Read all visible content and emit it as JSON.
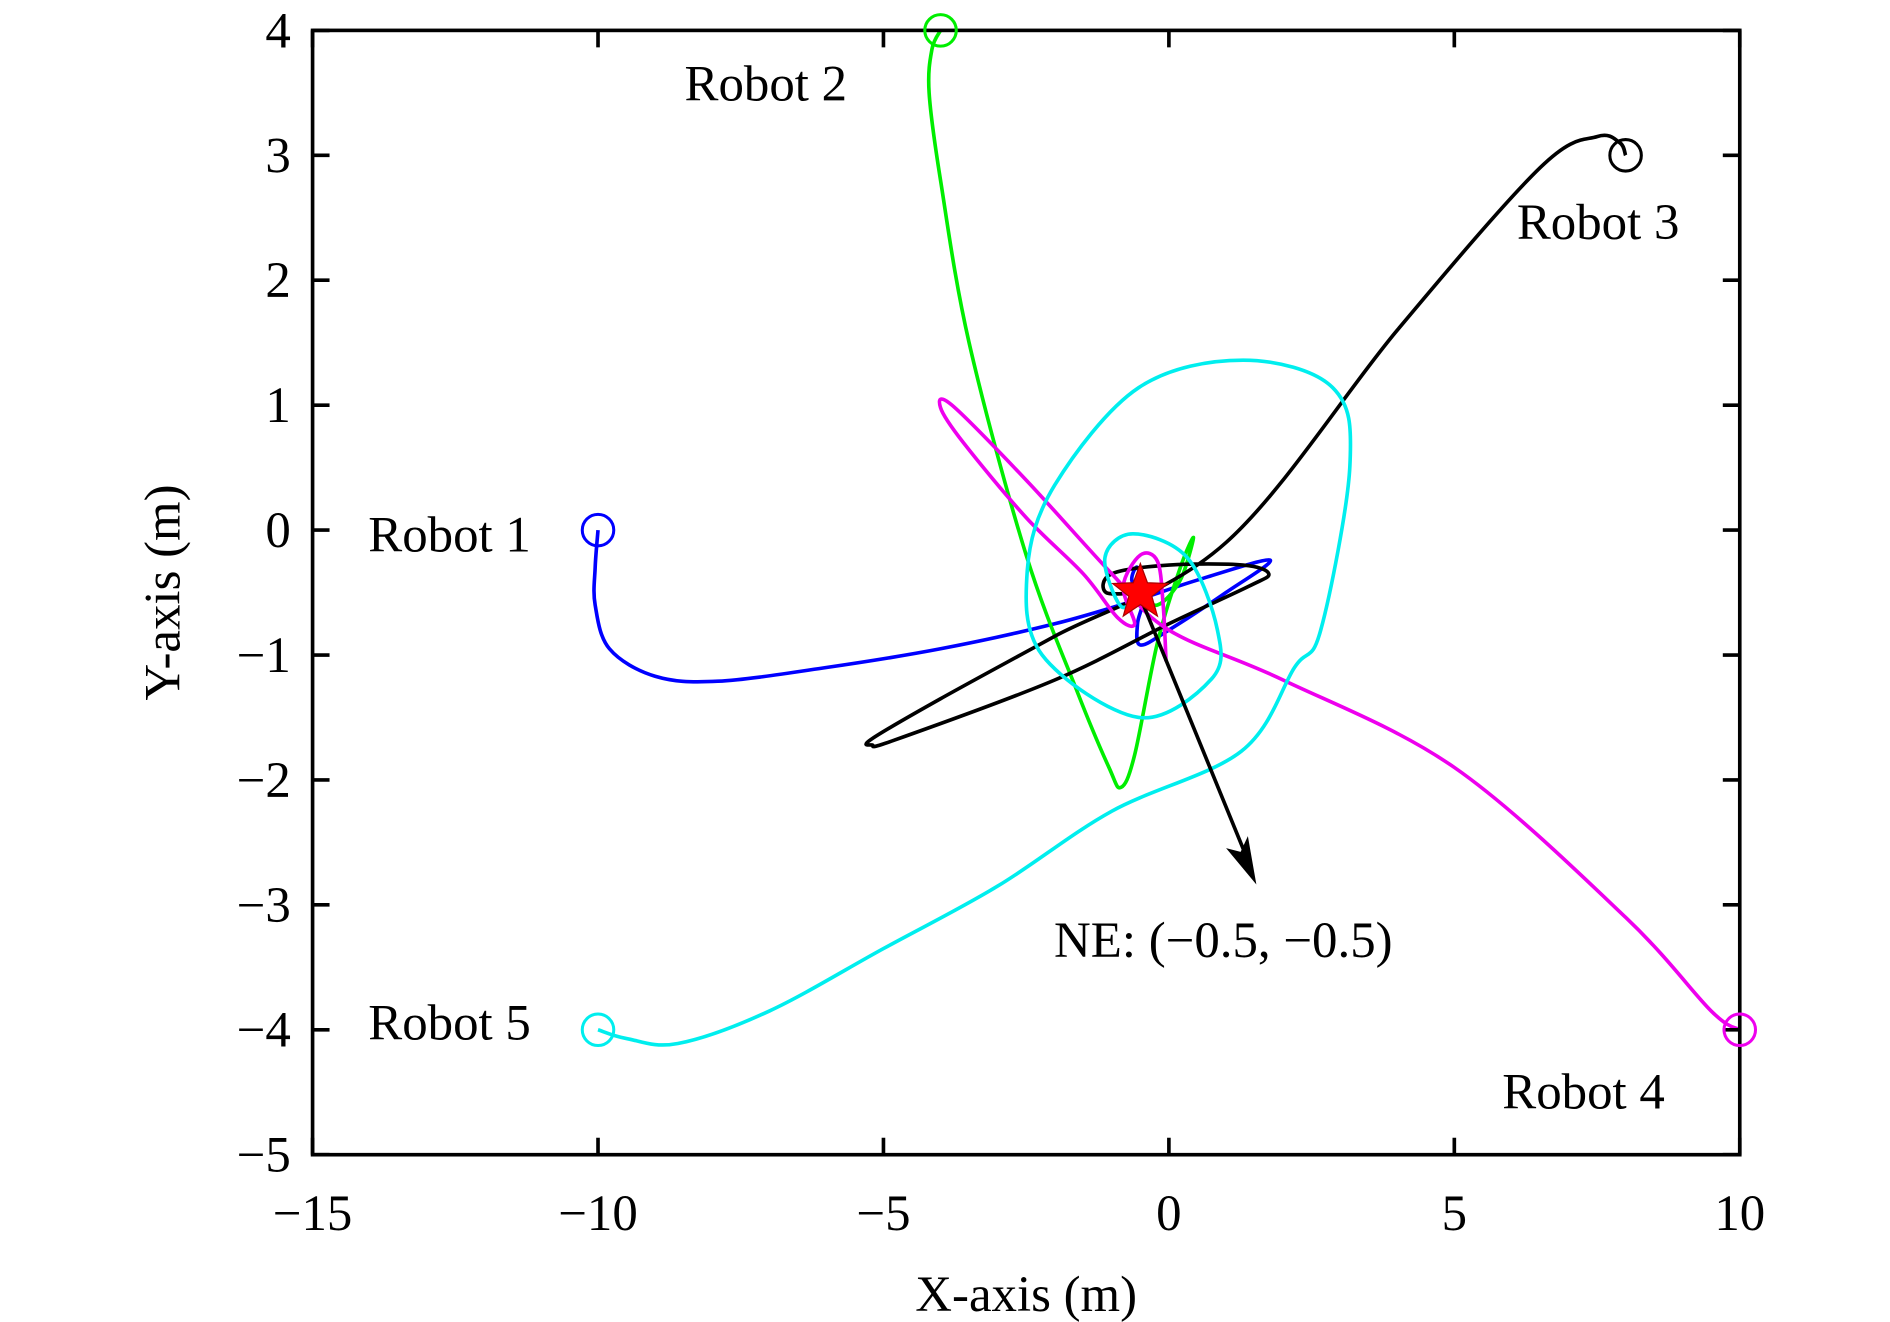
{
  "chart_data": {
    "type": "line",
    "title": "",
    "xlabel": "X-axis (m)",
    "ylabel": "Y-axis (m)",
    "xlim": [
      -15,
      10
    ],
    "ylim": [
      -5,
      4
    ],
    "xticks": [
      "−15",
      "−10",
      "−5",
      "0",
      "5",
      "10"
    ],
    "yticks": [
      "4",
      "3",
      "2",
      "1",
      "0",
      "−1",
      "−2",
      "−3",
      "−4",
      "−5"
    ],
    "xtick_values": [
      -15,
      -10,
      -5,
      0,
      5,
      10
    ],
    "ytick_values": [
      4,
      3,
      2,
      1,
      0,
      -1,
      -2,
      -3,
      -4,
      -5
    ],
    "grid": false,
    "equilibrium": {
      "label": "NE: (−0.5, −0.5)",
      "x": -0.5,
      "y": -0.5,
      "color": "#ff0000"
    },
    "series": [
      {
        "name": "Robot 1",
        "color": "#0000ff",
        "start": [
          -10,
          0
        ],
        "points": [
          [
            -10,
            0
          ],
          [
            -10.05,
            -0.3
          ],
          [
            -10.05,
            -0.6
          ],
          [
            -9.8,
            -0.95
          ],
          [
            -9,
            -1.17
          ],
          [
            -7.9,
            -1.21
          ],
          [
            -6,
            -1.1
          ],
          [
            -4,
            -0.95
          ],
          [
            -2,
            -0.75
          ],
          [
            -0.5,
            -0.55
          ],
          [
            0.5,
            -0.4
          ],
          [
            1.77,
            -0.24
          ],
          [
            1,
            -0.5
          ],
          [
            0,
            -0.8
          ],
          [
            -0.5,
            -0.92
          ],
          [
            -0.55,
            -0.75
          ],
          [
            -0.45,
            -0.55
          ],
          [
            -0.55,
            -0.3
          ],
          [
            -0.65,
            -0.4
          ],
          [
            -0.5,
            -0.5
          ]
        ]
      },
      {
        "name": "Robot 2",
        "color": "#00ee00",
        "start": [
          -4,
          4
        ],
        "points": [
          [
            -4,
            4
          ],
          [
            -4.15,
            3.85
          ],
          [
            -4.2,
            3.5
          ],
          [
            -4,
            2.8
          ],
          [
            -3.5,
            1.5
          ],
          [
            -2.5,
            -0.2
          ],
          [
            -1.6,
            -1.3
          ],
          [
            -1.05,
            -1.9
          ],
          [
            -0.84,
            -2.06
          ],
          [
            -0.6,
            -1.8
          ],
          [
            -0.2,
            -0.9
          ],
          [
            0.2,
            -0.3
          ],
          [
            0.43,
            -0.06
          ],
          [
            0.2,
            -0.4
          ],
          [
            -0.2,
            -0.6
          ],
          [
            -0.5,
            -0.5
          ]
        ]
      },
      {
        "name": "Robot 3",
        "color": "#000000",
        "start": [
          8,
          3
        ],
        "points": [
          [
            8,
            3
          ],
          [
            7.9,
            3.1
          ],
          [
            7.5,
            3.15
          ],
          [
            6.5,
            2.9
          ],
          [
            4,
            1.6
          ],
          [
            1,
            -0.1
          ],
          [
            -2,
            -0.85
          ],
          [
            -4,
            -1.35
          ],
          [
            -5.2,
            -1.67
          ],
          [
            -5.2,
            -1.72
          ],
          [
            -4.8,
            -1.68
          ],
          [
            -2,
            -1.2
          ],
          [
            0,
            -0.75
          ],
          [
            1.4,
            -0.45
          ],
          [
            1.75,
            -0.35
          ],
          [
            1.3,
            -0.28
          ],
          [
            0,
            -0.28
          ],
          [
            -1,
            -0.35
          ],
          [
            -1.1,
            -0.5
          ],
          [
            -0.5,
            -0.5
          ]
        ]
      },
      {
        "name": "Robot 4",
        "color": "#ee00ee",
        "start": [
          10,
          -4
        ],
        "points": [
          [
            10,
            -4
          ],
          [
            9.5,
            -3.85
          ],
          [
            8,
            -3.1
          ],
          [
            5,
            -1.9
          ],
          [
            2,
            -1.2
          ],
          [
            0,
            -0.8
          ],
          [
            -1,
            -0.35
          ],
          [
            -2.5,
            0.4
          ],
          [
            -3.8,
            1.0
          ],
          [
            -4,
            0.98
          ],
          [
            -3.6,
            0.7
          ],
          [
            -2.5,
            0.1
          ],
          [
            -1.5,
            -0.35
          ],
          [
            -0.9,
            -0.7
          ],
          [
            -0.6,
            -0.75
          ],
          [
            -0.8,
            -0.45
          ],
          [
            -0.5,
            -0.2
          ],
          [
            -0.2,
            -0.25
          ],
          [
            -0.1,
            -0.6
          ],
          [
            -0.05,
            -1.05
          ]
        ]
      },
      {
        "name": "Robot 5",
        "color": "#00eeee",
        "start": [
          -10,
          -4
        ],
        "points": [
          [
            -10,
            -4
          ],
          [
            -9.5,
            -4.07
          ],
          [
            -8.6,
            -4.11
          ],
          [
            -7,
            -3.85
          ],
          [
            -5,
            -3.35
          ],
          [
            -3,
            -2.85
          ],
          [
            -1,
            -2.25
          ],
          [
            1.27,
            -1.77
          ],
          [
            2.2,
            -1.1
          ],
          [
            2.66,
            -0.8
          ],
          [
            3.17,
            0.51
          ],
          [
            2.87,
            1.14
          ],
          [
            1.3,
            1.36
          ],
          [
            -0.53,
            1.14
          ],
          [
            -2.0,
            0.36
          ],
          [
            -2.48,
            -0.32
          ],
          [
            -2.22,
            -1.0
          ],
          [
            -0.53,
            -1.5
          ],
          [
            0.75,
            -1.19
          ],
          [
            0.85,
            -0.8
          ],
          [
            0.32,
            -0.22
          ],
          [
            -0.63,
            -0.03
          ],
          [
            -1.12,
            -0.22
          ],
          [
            -0.84,
            -0.61
          ],
          [
            -0.5,
            -0.5
          ]
        ]
      }
    ]
  }
}
